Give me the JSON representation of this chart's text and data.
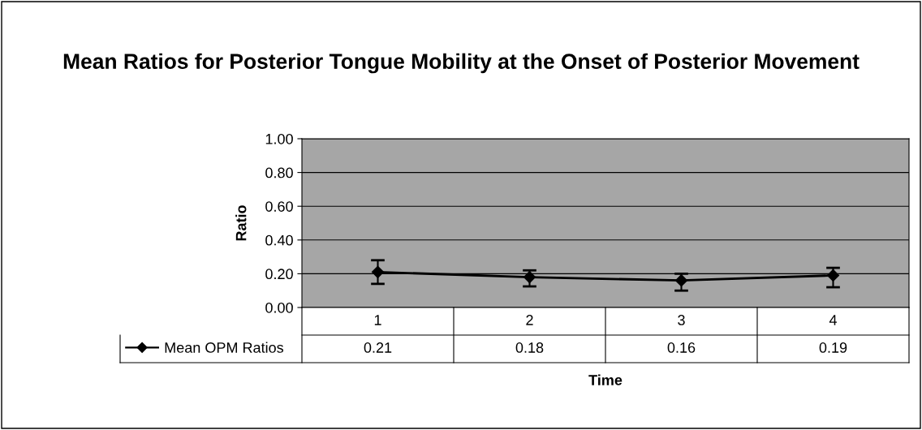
{
  "chart_data": {
    "type": "line",
    "title": "Mean Ratios for Posterior Tongue Mobility at the Onset of Posterior Movement",
    "xlabel": "Time",
    "ylabel": "Ratio",
    "categories": [
      "1",
      "2",
      "3",
      "4"
    ],
    "series": [
      {
        "name": "Mean OPM Ratios",
        "color": "#000000",
        "values": [
          0.21,
          0.18,
          0.16,
          0.19
        ],
        "errors": [
          [
            0.14,
            0.28
          ],
          [
            0.125,
            0.22
          ],
          [
            0.1,
            0.2
          ],
          [
            0.12,
            0.235
          ]
        ]
      }
    ],
    "ylim": [
      0,
      1
    ],
    "yticks": [
      {
        "value": 0,
        "label": "0.00"
      },
      {
        "value": 0.2,
        "label": "0.20"
      },
      {
        "value": 0.4,
        "label": "0.40"
      },
      {
        "value": 0.6,
        "label": "0.60"
      },
      {
        "value": 0.8,
        "label": "0.80"
      },
      {
        "value": 1,
        "label": "1.00"
      }
    ],
    "grid": "y",
    "legend": "bottom left",
    "marker": "diamond",
    "line_style": "solid",
    "data_labels": true
  }
}
